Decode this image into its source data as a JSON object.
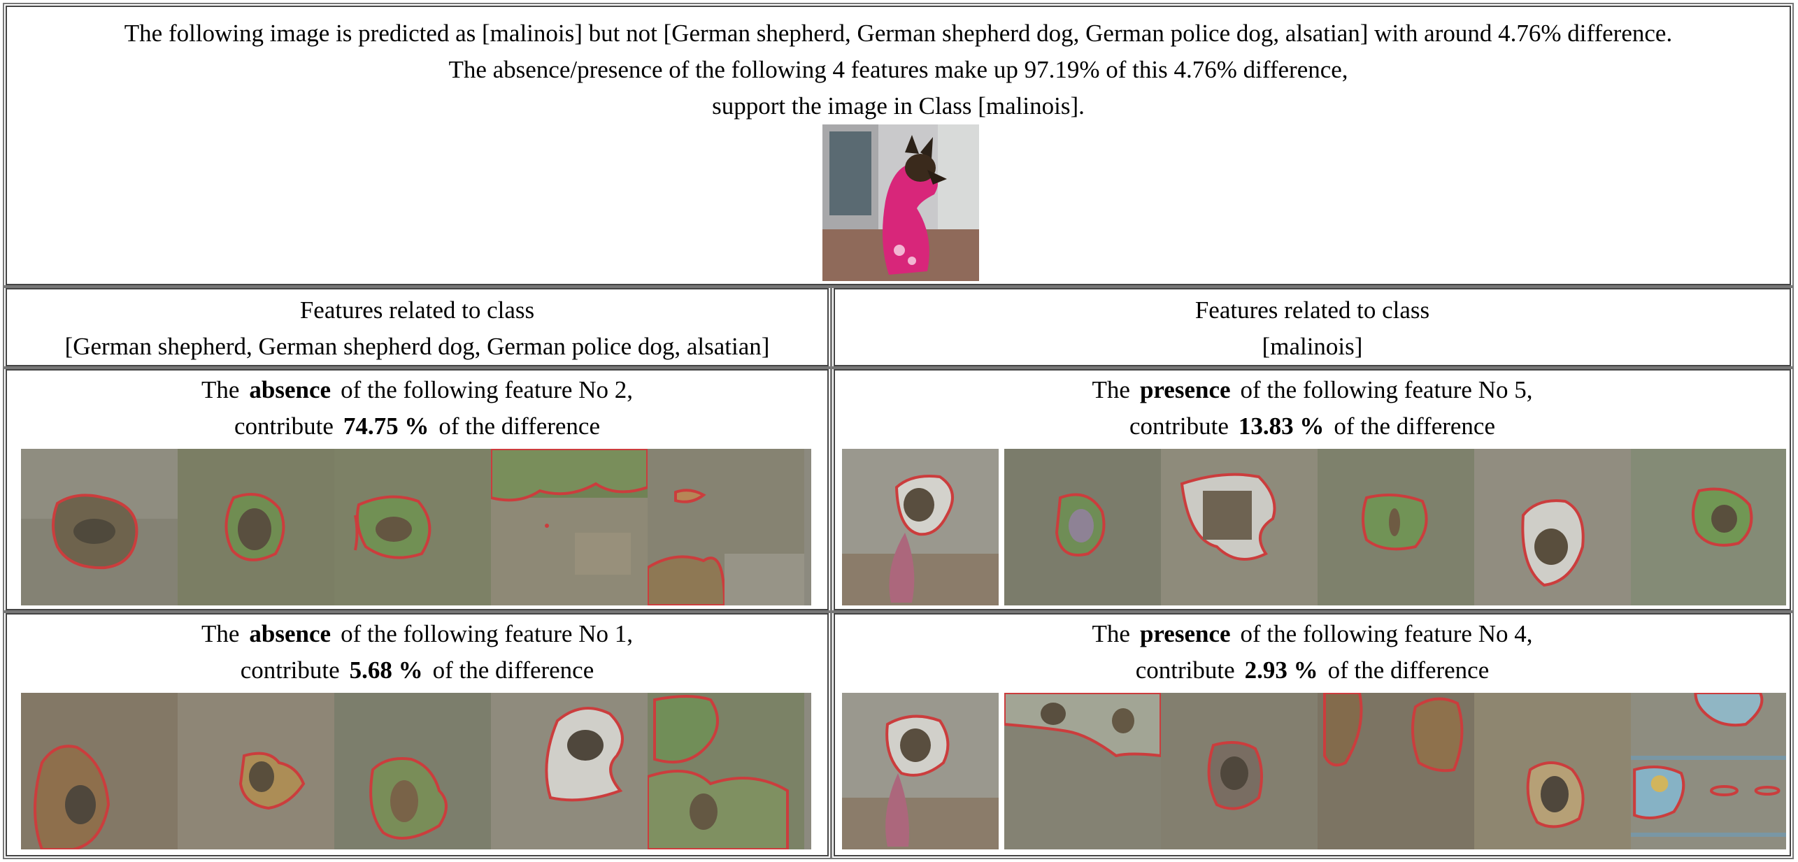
{
  "header": {
    "line1": "The following image is predicted as [malinois] but not [German shepherd, German shepherd dog, German police dog, alsatian] with around 4.76% difference.",
    "line2": "The absence/presence of the following 4 features make up 97.19% of this 4.76% difference,",
    "line3": "support the image in Class [malinois]."
  },
  "columns": {
    "left": {
      "title_line1": "Features related to class",
      "title_line2": "[German shepherd, German shepherd dog, German police dog, alsatian]"
    },
    "right": {
      "title_line1": "Features related to class",
      "title_line2": "[malinois]"
    }
  },
  "features": {
    "left_top": {
      "prefix": "The",
      "kind": "absence",
      "middle": "of the following feature No 2,",
      "contrib_prefix": "contribute",
      "percent": "74.75 %",
      "contrib_suffix": "of the difference"
    },
    "right_top": {
      "prefix": "The",
      "kind": "presence",
      "middle": "of the following feature No 5,",
      "contrib_prefix": "contribute",
      "percent": "13.83 %",
      "contrib_suffix": "of the difference"
    },
    "left_bottom": {
      "prefix": "The",
      "kind": "absence",
      "middle": "of the following feature No 1,",
      "contrib_prefix": "contribute",
      "percent": "5.68 %",
      "contrib_suffix": "of the difference"
    },
    "right_bottom": {
      "prefix": "The",
      "kind": "presence",
      "middle": "of the following feature No 4,",
      "contrib_prefix": "contribute",
      "percent": "2.93 %",
      "contrib_suffix": "of the difference"
    }
  },
  "colors": {
    "outline": "#e8101a",
    "border": "#444444"
  }
}
